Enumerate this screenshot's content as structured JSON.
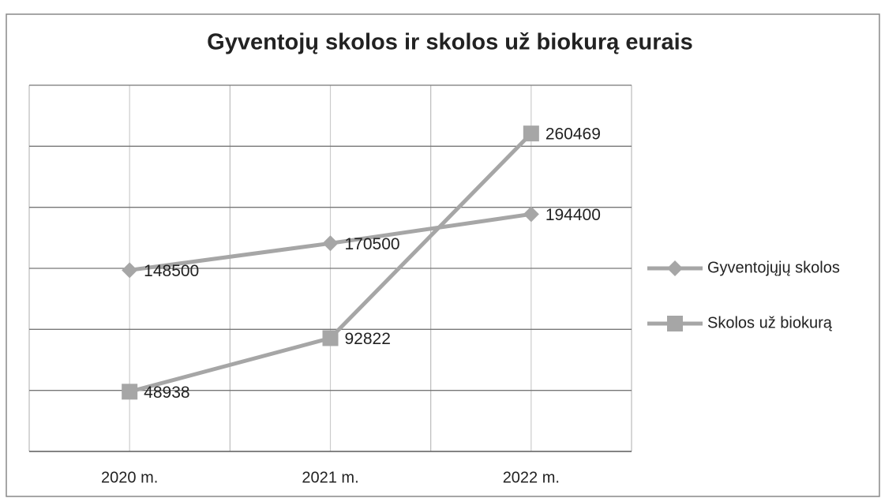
{
  "chart_data": {
    "type": "line",
    "title": "Gyventojų skolos ir skolos už biokurą  eurais",
    "categories": [
      "2020 m.",
      "2021 m.",
      "2022 m."
    ],
    "series": [
      {
        "name": "Gyventojųjų skolos",
        "color": "#a6a6a6",
        "marker": "diamond",
        "values": [
          148500,
          170500,
          194400
        ]
      },
      {
        "name": "Skolos už biokurą",
        "color": "#a6a6a6",
        "marker": "square",
        "values": [
          48938,
          92822,
          260469
        ]
      }
    ],
    "ylim": [
      0,
      300000
    ],
    "yticks": [
      0,
      50000,
      100000,
      150000,
      200000,
      250000,
      300000
    ],
    "grid": true,
    "legend": "right"
  }
}
